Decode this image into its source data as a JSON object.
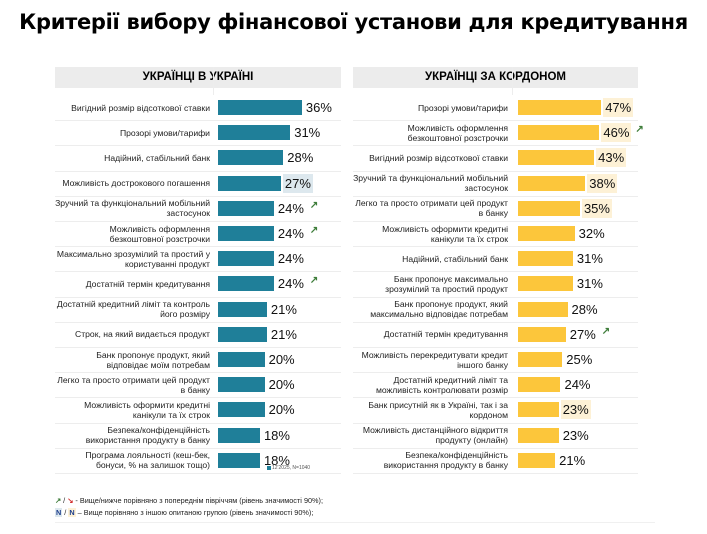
{
  "title": "Критерії вибору фінансової установи для кредитування",
  "chart_data": [
    {
      "type": "bar",
      "orientation": "horizontal",
      "title": "УКРАЇНЦІ В УКРАЇНІ",
      "unit": "%",
      "color": "#1f7f99",
      "highlight_color": "#dde8ee",
      "note": "12'2025, N=1040",
      "categories": [
        "Вигідний розмір відсоткової ставки",
        "Прозорі умови/тарифи",
        "Надійний, стабільний банк",
        "Можливість дострокового погашення",
        "Зручний та функціональний мобільний застосунок",
        "Можливість оформлення безкоштовної розстрочки",
        "Максимально зрозумілий та простий у користуванні продукт",
        "Достатній термін кредитування",
        "Достатній кредитний ліміт та контроль його розміру",
        "Строк, на який видається продукт",
        "Банк пропонує продукт, який відповідає моїм потребам",
        "Легко та просто отримати цей продукт в банку",
        "Можливість оформити кредитні канікули та їх строк",
        "Безпека/конфіденційність використання продукту в банку",
        "Програма лояльності (кеш-бек, бонуси, % на залишок тощо)"
      ],
      "values": [
        36,
        31,
        28,
        27,
        24,
        24,
        24,
        24,
        21,
        21,
        20,
        20,
        20,
        18,
        18
      ],
      "value_labels": [
        "36%",
        "31%",
        "28%",
        "27%",
        "24%",
        "24%",
        "24%",
        "24%",
        "21%",
        "21%",
        "20%",
        "20%",
        "20%",
        "18%",
        "18%"
      ],
      "higher_than_other_group": [
        false,
        false,
        false,
        true,
        false,
        false,
        false,
        false,
        false,
        false,
        false,
        false,
        false,
        false,
        false
      ],
      "trend_up": [
        false,
        false,
        false,
        false,
        true,
        true,
        false,
        true,
        false,
        false,
        false,
        false,
        false,
        false,
        false
      ],
      "xlim": [
        0,
        50
      ]
    },
    {
      "type": "bar",
      "orientation": "horizontal",
      "title": "УКРАЇНЦІ ЗА КОРДОНОМ",
      "unit": "%",
      "color": "#fcc63b",
      "highlight_color": "#fdf1d6",
      "categories": [
        "Прозорі умови/тарифи",
        "Можливість оформлення безкоштовної розстрочки",
        "Вигідний розмір відсоткової ставки",
        "Зручний та функціональний мобільний застосунок",
        "Легко та просто отримати цей продукт в банку",
        "Можливість оформити кредитні канікули та їх строк",
        "Надійний, стабільний банк",
        "Банк пропонує максимально зрозумілий та простий продукт",
        "Банк пропонує продукт, який максимально відповідає потребам",
        "Достатній термін кредитування",
        "Можливість перекредитувати кредит іншого банку",
        "Достатній кредитний ліміт та можливість контролювати розмір",
        "Банк присутній як в Україні, так і за кордоном",
        "Можливість дистанційного відкриття продукту (онлайн)",
        "Безпека/конфіденційність використання продукту в банку"
      ],
      "values": [
        47,
        46,
        43,
        38,
        35,
        32,
        31,
        31,
        28,
        27,
        25,
        24,
        23,
        23,
        21
      ],
      "value_labels": [
        "47%",
        "46%",
        "43%",
        "38%",
        "35%",
        "32%",
        "31%",
        "31%",
        "28%",
        "27%",
        "25%",
        "24%",
        "23%",
        "23%",
        "21%"
      ],
      "higher_than_other_group": [
        true,
        true,
        true,
        true,
        true,
        false,
        false,
        false,
        false,
        false,
        false,
        false,
        true,
        false,
        false
      ],
      "trend_up": [
        false,
        true,
        false,
        false,
        false,
        false,
        false,
        false,
        false,
        true,
        false,
        false,
        false,
        false,
        false
      ],
      "xlim": [
        0,
        60
      ]
    }
  ],
  "legend": {
    "arrow_up": "↗",
    "arrow_down": "↘",
    "line1_sep": " / ",
    "line1_text": " - Вище/нижче порівняно з попереднім півріччям (рівень значимості 90%);",
    "n_letter": "N",
    "line2_sep": " / ",
    "line2_text": " – Вище порівняно з іншою опитаною групою (рівень значимості 90%);"
  }
}
